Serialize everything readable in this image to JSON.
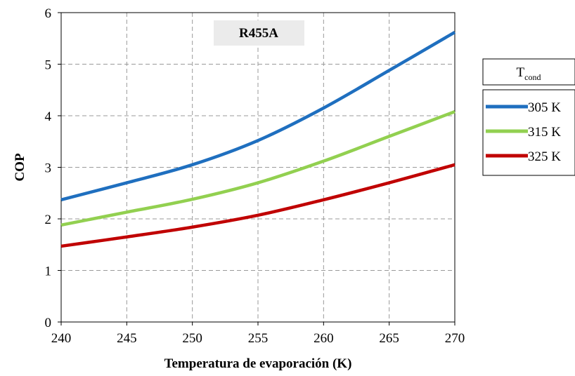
{
  "chart_data": {
    "type": "line",
    "title": "",
    "xlabel": "Temperatura de evaporación (K)",
    "ylabel": "COP",
    "xlim": [
      240,
      270
    ],
    "ylim": [
      0,
      6
    ],
    "xticks": [
      240,
      245,
      250,
      255,
      260,
      265,
      270
    ],
    "yticks": [
      0,
      1,
      2,
      3,
      4,
      5,
      6
    ],
    "grid": true,
    "annotation": "R455A",
    "legend": {
      "title_main": "T",
      "title_sub": "cond",
      "position": "right"
    },
    "x": [
      240,
      245,
      250,
      255,
      260,
      265,
      270
    ],
    "series": [
      {
        "name": "305 K",
        "color": "#1f6fbf",
        "values": [
          2.37,
          2.7,
          3.05,
          3.52,
          4.15,
          4.88,
          5.62
        ]
      },
      {
        "name": "315 K",
        "color": "#92d050",
        "values": [
          1.88,
          2.13,
          2.38,
          2.7,
          3.12,
          3.6,
          4.08
        ]
      },
      {
        "name": "325 K",
        "color": "#c00000",
        "values": [
          1.47,
          1.65,
          1.84,
          2.07,
          2.37,
          2.7,
          3.05
        ]
      }
    ]
  }
}
